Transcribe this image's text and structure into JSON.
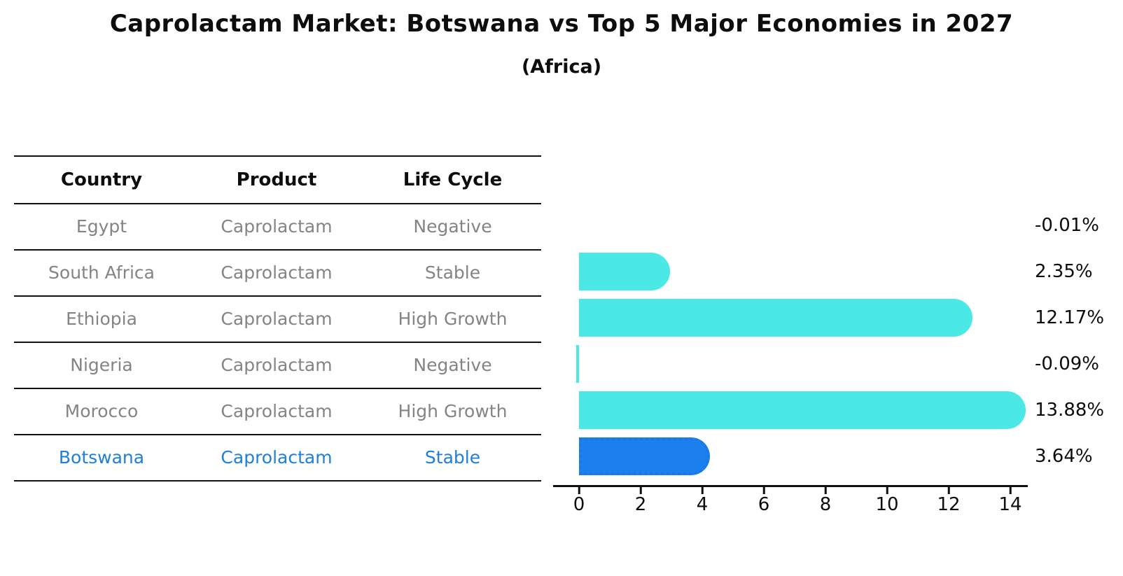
{
  "title": "Caprolactam Market: Botswana vs Top 5 Major Economies in 2027",
  "subtitle": "(Africa)",
  "table": {
    "headers": [
      "Country",
      "Product",
      "Life Cycle"
    ],
    "rows": [
      {
        "country": "Egypt",
        "product": "Caprolactam",
        "life_cycle": "Negative",
        "highlight": false
      },
      {
        "country": "South Africa",
        "product": "Caprolactam",
        "life_cycle": "Stable",
        "highlight": false
      },
      {
        "country": "Ethiopia",
        "product": "Caprolactam",
        "life_cycle": "High Growth",
        "highlight": false
      },
      {
        "country": "Nigeria",
        "product": "Caprolactam",
        "life_cycle": "Negative",
        "highlight": false
      },
      {
        "country": "Morocco",
        "product": "Caprolactam",
        "life_cycle": "High Growth",
        "highlight": false
      },
      {
        "country": "Botswana",
        "product": "Caprolactam",
        "life_cycle": "Stable",
        "highlight": true
      }
    ]
  },
  "chart_data": {
    "type": "bar",
    "orientation": "horizontal",
    "categories": [
      "Egypt",
      "South Africa",
      "Ethiopia",
      "Nigeria",
      "Morocco",
      "Botswana"
    ],
    "values": [
      -0.01,
      2.35,
      12.17,
      -0.09,
      13.88,
      3.64
    ],
    "value_labels": [
      "-0.01%",
      "2.35%",
      "12.17%",
      "-0.09%",
      "13.88%",
      "3.64%"
    ],
    "xlabel": "",
    "ylabel": "",
    "xlim": [
      0,
      14
    ],
    "x_ticks": [
      0,
      2,
      4,
      6,
      8,
      10,
      12,
      14
    ],
    "grid": false,
    "bar_color": "#4BE9E5",
    "highlight_color": "#1B80EE",
    "highlight_index": 5
  },
  "colors": {
    "accent_cyan": "#4BE9E5",
    "accent_blue": "#1B80EE",
    "highlight_text": "#2080d8",
    "text": "#0d0d0d",
    "muted_text": "#848484"
  }
}
